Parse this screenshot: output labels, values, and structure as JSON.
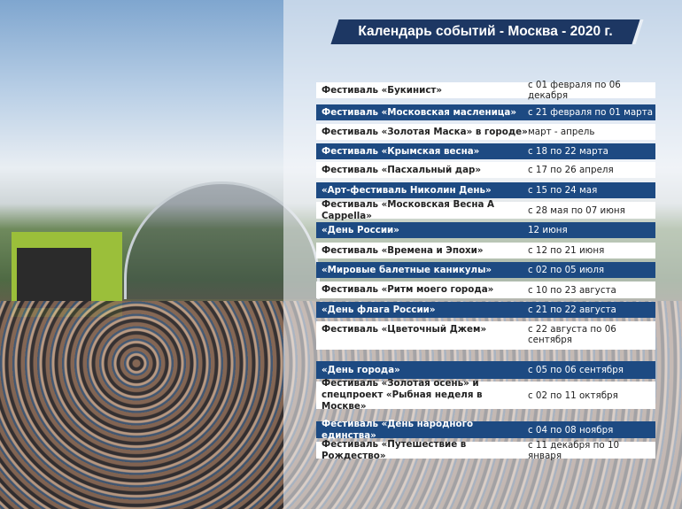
{
  "title": "Календарь событий - Москва - 2020  г.",
  "colors": {
    "banner": "#1d3763",
    "row_blue": "#1d4a82",
    "row_white": "#ffffff"
  },
  "events": [
    {
      "name": "Фестиваль «Букинист»",
      "dates": "с 01 февраля по 06 декабря"
    },
    {
      "name": "Фестиваль «Московская масленица»",
      "dates": "с  21 февраля по 01 марта"
    },
    {
      "name": "Фестиваль «Золотая Маска» в городе»",
      "dates": "март - апрель"
    },
    {
      "name": "Фестиваль «Крымская весна»",
      "dates": "с 18 по 22 марта"
    },
    {
      "name": "Фестиваль «Пасхальный дар»",
      "dates": "с 17 по 26 апреля"
    },
    {
      "name": "«Арт-фестиваль Николин День»",
      "dates": "с 15 по 24 мая"
    },
    {
      "name": "Фестиваль «Московская Весна A Cappella»",
      "dates": "с 28 мая по 07 июня"
    },
    {
      "name": "«День России»",
      "dates": "12 июня"
    },
    {
      "name": "Фестиваль «Времена и Эпохи»",
      "dates": "с 12 по 21 июня"
    },
    {
      "name": "«Мировые балетные каникулы»",
      "dates": "с 02 по 05 июля"
    },
    {
      "name": "Фестиваль «Ритм моего города»",
      "dates": "с 10 по 23 августа"
    },
    {
      "name": "«День флага России»",
      "dates": "с 21 по 22 августа"
    },
    {
      "name": "Фестиваль «Цветочный Джем»",
      "dates": "с 22 августа по 06 сентября"
    },
    {
      "name": "«День города»",
      "dates": "с 05 по 06 сентября"
    },
    {
      "name": "Фестиваль «Золотая осень» и спецпроект «Рыбная неделя в Москве»",
      "dates": "с 02 по 11 октября"
    },
    {
      "name": "Фестиваль «День народного единства»",
      "dates": "с 04 по 08 ноября"
    },
    {
      "name": "Фестиваль «Путешествие в Рождество»",
      "dates": "с 11 декабря по 10 января"
    }
  ]
}
